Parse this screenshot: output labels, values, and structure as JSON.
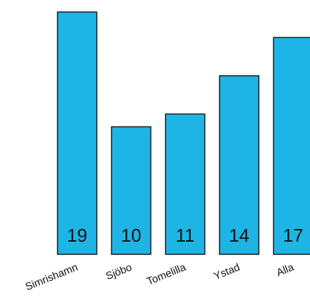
{
  "chart_data": {
    "type": "bar",
    "categories": [
      "Simrishamn",
      "Sjöbo",
      "Tomelilla",
      "Ystad",
      "Alla"
    ],
    "values": [
      19,
      10,
      11,
      14,
      17
    ],
    "data_labels": [
      "19",
      "10",
      "11",
      "14",
      "17"
    ],
    "title": "",
    "xlabel": "",
    "ylabel": "",
    "ylim": [
      0,
      19.5
    ],
    "grid": false,
    "bar_color": "#1eb4e6",
    "bar_edge_color": "#1a1a1a"
  }
}
